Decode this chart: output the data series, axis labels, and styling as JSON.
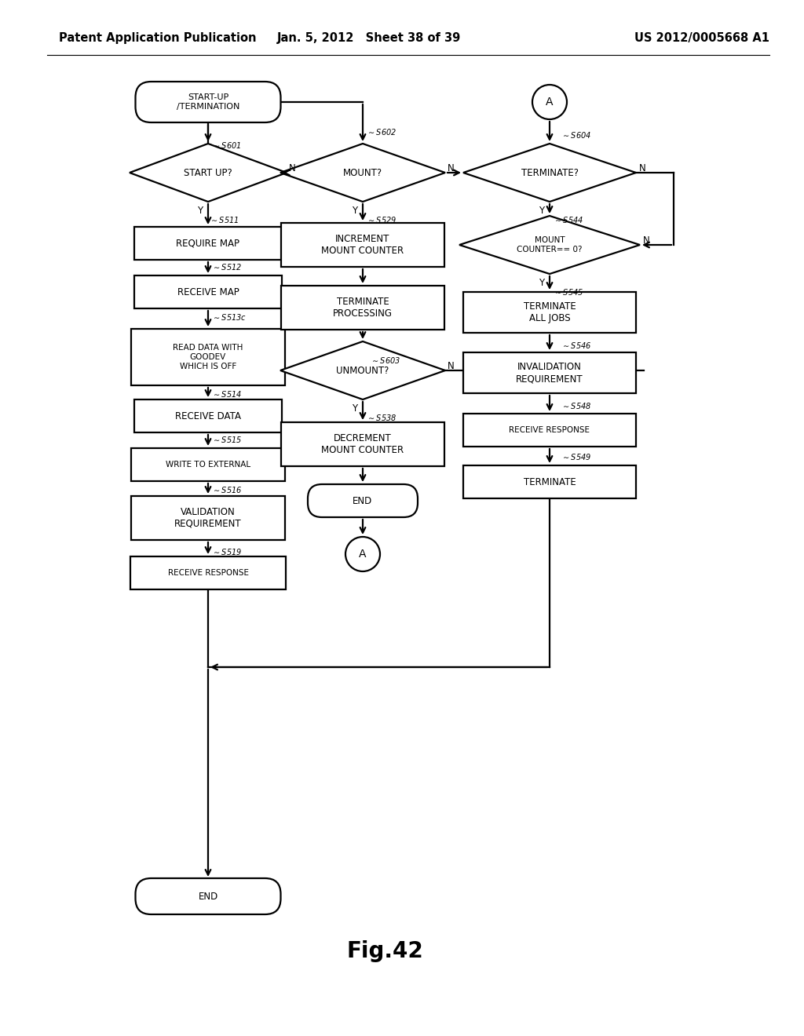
{
  "title_left": "Patent Application Publication",
  "title_mid": "Jan. 5, 2012   Sheet 38 of 39",
  "title_right": "US 2012/0005668 A1",
  "fig_label": "Fig.42",
  "background": "#ffffff",
  "line_color": "#000000",
  "text_color": "#000000",
  "font_size_header": 10.5,
  "font_size_node": 8.5,
  "font_size_small_node": 7.5,
  "font_size_label": 7.0,
  "font_size_fig": 20,
  "lw": 1.6
}
